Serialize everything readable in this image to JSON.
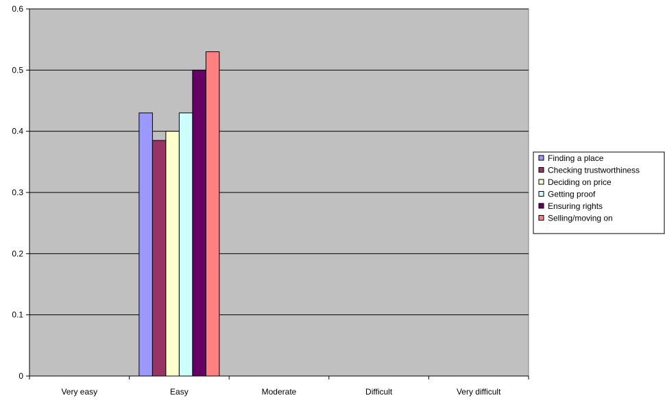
{
  "chart_data": {
    "type": "bar",
    "title": "",
    "xlabel": "",
    "ylabel": "",
    "categories": [
      "Very easy",
      "Easy",
      "Moderate",
      "Difficult",
      "Very difficult"
    ],
    "ylim": [
      0,
      0.6
    ],
    "yticks": [
      "0",
      "0.1",
      "0.2",
      "0.3",
      "0.4",
      "0.5",
      "0.6"
    ],
    "grid": true,
    "legend_position": "right",
    "plot_background": "#c0c0c0",
    "series": [
      {
        "name": "Finding a place",
        "color": "#9999ff",
        "values": [
          0,
          0.43,
          0,
          0,
          0
        ]
      },
      {
        "name": "Checking trustworthiness",
        "color": "#993366",
        "values": [
          0,
          0.385,
          0,
          0,
          0
        ]
      },
      {
        "name": "Deciding on price",
        "color": "#ffffcc",
        "values": [
          0,
          0.4,
          0,
          0,
          0
        ]
      },
      {
        "name": "Getting proof",
        "color": "#ccffff",
        "values": [
          0,
          0.43,
          0,
          0,
          0
        ]
      },
      {
        "name": "Ensuring rights",
        "color": "#660066",
        "values": [
          0,
          0.5,
          0,
          0,
          0
        ]
      },
      {
        "name": "Selling/moving on",
        "color": "#ff8080",
        "values": [
          0,
          0.53,
          0,
          0,
          0
        ]
      }
    ]
  }
}
